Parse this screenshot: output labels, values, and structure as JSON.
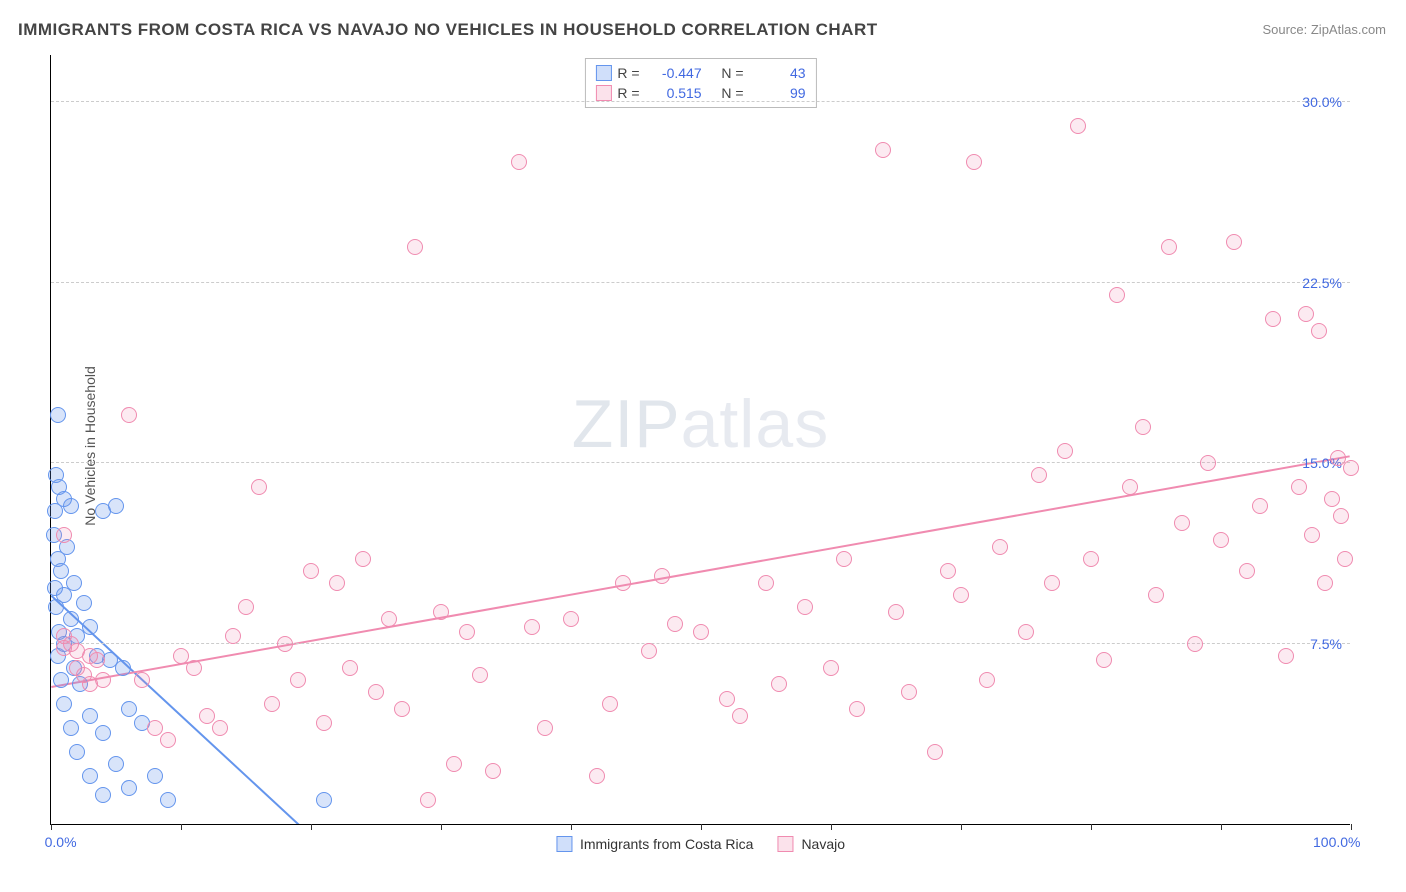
{
  "title": "IMMIGRANTS FROM COSTA RICA VS NAVAJO NO VEHICLES IN HOUSEHOLD CORRELATION CHART",
  "source": "Source: ZipAtlas.com",
  "ylabel": "No Vehicles in Household",
  "watermark_a": "ZIP",
  "watermark_b": "atlas",
  "chart": {
    "type": "scatter",
    "xlim": [
      0,
      100
    ],
    "ylim": [
      0,
      32
    ],
    "yticks": [
      7.5,
      15.0,
      22.5,
      30.0
    ],
    "ytick_labels": [
      "7.5%",
      "15.0%",
      "22.5%",
      "30.0%"
    ],
    "xticks": [
      0,
      10,
      20,
      30,
      40,
      50,
      60,
      70,
      80,
      90,
      100
    ],
    "xtick_labels_shown": {
      "0": "0.0%",
      "100": "100.0%"
    },
    "background_color": "#ffffff",
    "grid_color": "#cccccc",
    "axis_color": "#000000",
    "label_color": "#4169e1",
    "label_fontsize": 14,
    "title_fontsize": 17,
    "marker_radius": 8,
    "series": [
      {
        "name": "Immigrants from Costa Rica",
        "color": "#6495ed",
        "fill": "rgba(100,149,237,0.25)",
        "stats": {
          "R_label": "R =",
          "R": "-0.447",
          "N_label": "N =",
          "N": "43"
        },
        "trend": {
          "x1": 0,
          "y1": 9.5,
          "x2": 20,
          "y2": -0.5,
          "width": 2
        },
        "points": [
          [
            0.5,
            17.0
          ],
          [
            0.4,
            14.5
          ],
          [
            0.6,
            14.0
          ],
          [
            1.0,
            13.5
          ],
          [
            0.3,
            13.0
          ],
          [
            1.5,
            13.2
          ],
          [
            0.2,
            12.0
          ],
          [
            1.2,
            11.5
          ],
          [
            0.5,
            11.0
          ],
          [
            0.8,
            10.5
          ],
          [
            1.8,
            10.0
          ],
          [
            0.3,
            9.8
          ],
          [
            1.0,
            9.5
          ],
          [
            2.5,
            9.2
          ],
          [
            0.4,
            9.0
          ],
          [
            1.5,
            8.5
          ],
          [
            3.0,
            8.2
          ],
          [
            0.6,
            8.0
          ],
          [
            2.0,
            7.8
          ],
          [
            4.0,
            13.0
          ],
          [
            5.0,
            13.2
          ],
          [
            1.0,
            7.5
          ],
          [
            3.5,
            7.0
          ],
          [
            0.5,
            7.0
          ],
          [
            1.8,
            6.5
          ],
          [
            4.5,
            6.8
          ],
          [
            0.8,
            6.0
          ],
          [
            2.2,
            5.8
          ],
          [
            5.5,
            6.5
          ],
          [
            1.0,
            5.0
          ],
          [
            3.0,
            4.5
          ],
          [
            6.0,
            4.8
          ],
          [
            1.5,
            4.0
          ],
          [
            4.0,
            3.8
          ],
          [
            7.0,
            4.2
          ],
          [
            2.0,
            3.0
          ],
          [
            5.0,
            2.5
          ],
          [
            8.0,
            2.0
          ],
          [
            3.0,
            2.0
          ],
          [
            6.0,
            1.5
          ],
          [
            9.0,
            1.0
          ],
          [
            4.0,
            1.2
          ],
          [
            21.0,
            1.0
          ]
        ]
      },
      {
        "name": "Navajo",
        "color": "#f08bb0",
        "fill": "rgba(240,139,176,0.18)",
        "stats": {
          "R_label": "R =",
          "R": "0.515",
          "N_label": "N =",
          "N": "99"
        },
        "trend": {
          "x1": 0,
          "y1": 5.7,
          "x2": 100,
          "y2": 15.3,
          "width": 2
        },
        "points": [
          [
            1.0,
            12.0
          ],
          [
            1.0,
            7.3
          ],
          [
            1.0,
            7.8
          ],
          [
            1.5,
            7.5
          ],
          [
            2.0,
            7.2
          ],
          [
            2.0,
            6.5
          ],
          [
            2.5,
            6.2
          ],
          [
            3.0,
            7.0
          ],
          [
            3.0,
            5.8
          ],
          [
            3.5,
            6.8
          ],
          [
            4.0,
            6.0
          ],
          [
            6.0,
            17.0
          ],
          [
            7.0,
            6.0
          ],
          [
            8.0,
            4.0
          ],
          [
            9.0,
            3.5
          ],
          [
            10.0,
            7.0
          ],
          [
            11.0,
            6.5
          ],
          [
            12.0,
            4.5
          ],
          [
            13.0,
            4.0
          ],
          [
            14.0,
            7.8
          ],
          [
            15.0,
            9.0
          ],
          [
            16.0,
            14.0
          ],
          [
            17.0,
            5.0
          ],
          [
            18.0,
            7.5
          ],
          [
            19.0,
            6.0
          ],
          [
            20.0,
            10.5
          ],
          [
            21.0,
            4.2
          ],
          [
            22.0,
            10.0
          ],
          [
            23.0,
            6.5
          ],
          [
            24.0,
            11.0
          ],
          [
            25.0,
            5.5
          ],
          [
            26.0,
            8.5
          ],
          [
            27.0,
            4.8
          ],
          [
            28.0,
            24.0
          ],
          [
            29.0,
            1.0
          ],
          [
            30.0,
            8.8
          ],
          [
            31.0,
            2.5
          ],
          [
            32.0,
            8.0
          ],
          [
            33.0,
            6.2
          ],
          [
            34.0,
            2.2
          ],
          [
            36.0,
            27.5
          ],
          [
            37.0,
            8.2
          ],
          [
            38.0,
            4.0
          ],
          [
            40.0,
            8.5
          ],
          [
            42.0,
            2.0
          ],
          [
            43.0,
            5.0
          ],
          [
            44.0,
            10.0
          ],
          [
            46.0,
            7.2
          ],
          [
            47.0,
            10.3
          ],
          [
            48.0,
            8.3
          ],
          [
            50.0,
            8.0
          ],
          [
            52.0,
            5.2
          ],
          [
            53.0,
            4.5
          ],
          [
            55.0,
            10.0
          ],
          [
            56.0,
            5.8
          ],
          [
            58.0,
            9.0
          ],
          [
            60.0,
            6.5
          ],
          [
            61.0,
            11.0
          ],
          [
            62.0,
            4.8
          ],
          [
            64.0,
            28.0
          ],
          [
            65.0,
            8.8
          ],
          [
            66.0,
            5.5
          ],
          [
            68.0,
            3.0
          ],
          [
            69.0,
            10.5
          ],
          [
            70.0,
            9.5
          ],
          [
            71.0,
            27.5
          ],
          [
            72.0,
            6.0
          ],
          [
            73.0,
            11.5
          ],
          [
            75.0,
            8.0
          ],
          [
            76.0,
            14.5
          ],
          [
            77.0,
            10.0
          ],
          [
            78.0,
            15.5
          ],
          [
            79.0,
            29.0
          ],
          [
            80.0,
            11.0
          ],
          [
            81.0,
            6.8
          ],
          [
            82.0,
            22.0
          ],
          [
            83.0,
            14.0
          ],
          [
            84.0,
            16.5
          ],
          [
            85.0,
            9.5
          ],
          [
            86.0,
            24.0
          ],
          [
            87.0,
            12.5
          ],
          [
            88.0,
            7.5
          ],
          [
            89.0,
            15.0
          ],
          [
            90.0,
            11.8
          ],
          [
            91.0,
            24.2
          ],
          [
            92.0,
            10.5
          ],
          [
            93.0,
            13.2
          ],
          [
            94.0,
            21.0
          ],
          [
            95.0,
            7.0
          ],
          [
            96.0,
            14.0
          ],
          [
            96.5,
            21.2
          ],
          [
            97.0,
            12.0
          ],
          [
            97.5,
            20.5
          ],
          [
            98.0,
            10.0
          ],
          [
            98.5,
            13.5
          ],
          [
            99.0,
            15.2
          ],
          [
            99.2,
            12.8
          ],
          [
            99.5,
            11.0
          ],
          [
            100.0,
            14.8
          ]
        ]
      }
    ]
  }
}
